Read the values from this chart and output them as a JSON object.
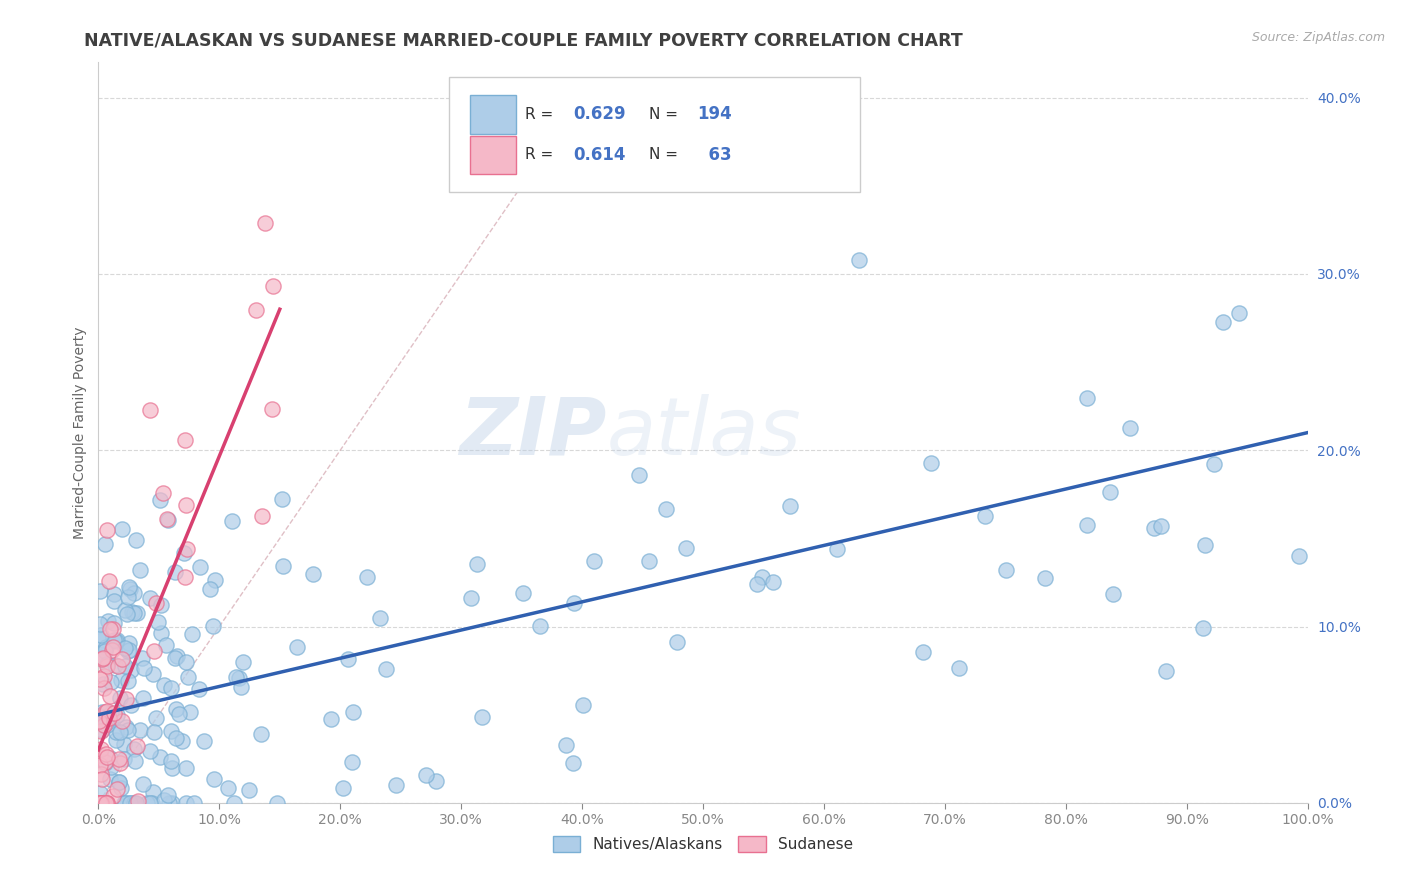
{
  "title": "NATIVE/ALASKAN VS SUDANESE MARRIED-COUPLE FAMILY POVERTY CORRELATION CHART",
  "source": "Source: ZipAtlas.com",
  "xlim": [
    0,
    100
  ],
  "ylim": [
    0,
    42
  ],
  "ylabel": "Married-Couple Family Poverty",
  "xlabel_ticks": [
    0,
    10,
    20,
    30,
    40,
    50,
    60,
    70,
    80,
    90,
    100
  ],
  "ylabel_ticks": [
    0,
    10,
    20,
    30,
    40
  ],
  "R_blue": 0.629,
  "N_blue": 194,
  "R_pink": 0.614,
  "N_pink": 63,
  "blue_scatter_color": "#aecde8",
  "pink_scatter_color": "#f5b8c8",
  "blue_edge_color": "#7aafd4",
  "pink_edge_color": "#e87090",
  "blue_line_color": "#3060b0",
  "pink_line_color": "#d84070",
  "ref_line_color": "#d8b0b8",
  "grid_color": "#d8d8d8",
  "watermark_color": "#c8d8e8",
  "background_color": "#ffffff",
  "title_color": "#404040",
  "axis_tick_color": "#4472c4",
  "title_fontsize": 12.5,
  "axis_label_fontsize": 10,
  "tick_fontsize": 10,
  "blue_reg_x0": 0,
  "blue_reg_y0": 5.0,
  "blue_reg_x1": 100,
  "blue_reg_y1": 21.0,
  "pink_reg_x0": 0,
  "pink_reg_y0": 3.0,
  "pink_reg_x1": 15,
  "pink_reg_y1": 28.0,
  "ref_x0": 0,
  "ref_y0": 0,
  "ref_x1": 40,
  "ref_y1": 40
}
